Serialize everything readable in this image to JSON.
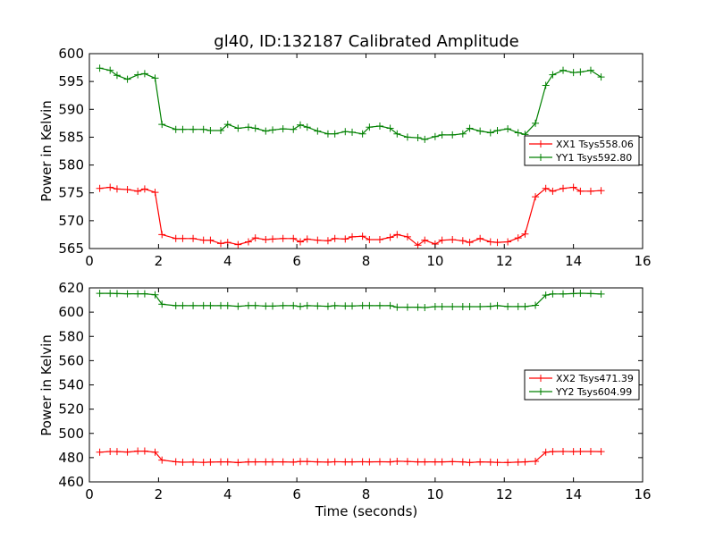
{
  "chart_data": [
    {
      "type": "line",
      "title": "gl40, ID:132187 Calibrated Amplitude",
      "xlabel": "",
      "ylabel": "Power in Kelvin",
      "xlim": [
        0,
        16
      ],
      "ylim": [
        565,
        600
      ],
      "xticks": [
        "0",
        "2",
        "4",
        "6",
        "8",
        "10",
        "12",
        "14",
        "16"
      ],
      "yticks": [
        "565",
        "570",
        "575",
        "580",
        "585",
        "590",
        "595",
        "600"
      ],
      "legend_position": "right",
      "marker": "+",
      "grid": false,
      "x": [
        0.3,
        0.6,
        0.8,
        1.1,
        1.4,
        1.6,
        1.9,
        2.1,
        2.5,
        2.7,
        3.0,
        3.3,
        3.5,
        3.8,
        4.0,
        4.3,
        4.6,
        4.8,
        5.1,
        5.3,
        5.6,
        5.9,
        6.1,
        6.3,
        6.6,
        6.9,
        7.1,
        7.4,
        7.6,
        7.9,
        8.1,
        8.4,
        8.7,
        8.9,
        9.2,
        9.5,
        9.7,
        10.0,
        10.2,
        10.5,
        10.8,
        11.0,
        11.3,
        11.6,
        11.8,
        12.1,
        12.4,
        12.6,
        12.9,
        13.2,
        13.4,
        13.7,
        14.0,
        14.2,
        14.5,
        14.8
      ],
      "series": [
        {
          "name": "XX1 Tsys558.06",
          "color": "#ff0000",
          "values": [
            575.8,
            576.0,
            575.7,
            575.6,
            575.3,
            575.7,
            575.1,
            567.5,
            566.8,
            566.8,
            566.8,
            566.5,
            566.5,
            565.9,
            566.1,
            565.7,
            566.2,
            566.9,
            566.6,
            566.7,
            566.8,
            566.8,
            566.2,
            566.7,
            566.5,
            566.4,
            566.8,
            566.7,
            567.1,
            567.2,
            566.6,
            566.6,
            567.0,
            567.5,
            567.1,
            565.6,
            566.5,
            565.8,
            566.5,
            566.6,
            566.4,
            566.1,
            566.8,
            566.2,
            566.1,
            566.2,
            566.9,
            567.6,
            574.3,
            575.8,
            575.3,
            575.8,
            576.0,
            575.3,
            575.3,
            575.4
          ]
        },
        {
          "name": "YY1 Tsys592.80",
          "color": "#008000",
          "values": [
            597.4,
            597.0,
            596.1,
            595.4,
            596.2,
            596.4,
            595.6,
            587.3,
            586.4,
            586.4,
            586.4,
            586.4,
            586.2,
            586.2,
            587.3,
            586.6,
            586.8,
            586.6,
            586.1,
            586.3,
            586.5,
            586.4,
            587.2,
            586.8,
            586.1,
            585.6,
            585.6,
            586.0,
            585.9,
            585.6,
            586.8,
            587.0,
            586.6,
            585.6,
            585.0,
            584.9,
            584.6,
            585.1,
            585.4,
            585.4,
            585.6,
            586.6,
            586.1,
            585.8,
            586.2,
            586.5,
            585.8,
            585.5,
            587.5,
            594.3,
            596.2,
            597.0,
            596.6,
            596.7,
            597.0,
            595.8
          ]
        }
      ]
    },
    {
      "type": "line",
      "title": "",
      "xlabel": "Time (seconds)",
      "ylabel": "Power in Kelvin",
      "xlim": [
        0,
        16
      ],
      "ylim": [
        460,
        620
      ],
      "xticks": [
        "0",
        "2",
        "4",
        "6",
        "8",
        "10",
        "12",
        "14",
        "16"
      ],
      "yticks": [
        "460",
        "480",
        "500",
        "520",
        "540",
        "560",
        "580",
        "600",
        "620"
      ],
      "legend_position": "right",
      "marker": "+",
      "grid": false,
      "x": [
        0.3,
        0.6,
        0.8,
        1.1,
        1.4,
        1.6,
        1.9,
        2.1,
        2.5,
        2.7,
        3.0,
        3.3,
        3.5,
        3.8,
        4.0,
        4.3,
        4.6,
        4.8,
        5.1,
        5.3,
        5.6,
        5.9,
        6.1,
        6.3,
        6.6,
        6.9,
        7.1,
        7.4,
        7.6,
        7.9,
        8.1,
        8.4,
        8.7,
        8.9,
        9.2,
        9.5,
        9.7,
        10.0,
        10.2,
        10.5,
        10.8,
        11.0,
        11.3,
        11.6,
        11.8,
        12.1,
        12.4,
        12.6,
        12.9,
        13.2,
        13.4,
        13.7,
        14.0,
        14.2,
        14.5,
        14.8
      ],
      "series": [
        {
          "name": "XX2 Tsys471.39",
          "color": "#ff0000",
          "values": [
            484.5,
            485.1,
            485.0,
            484.6,
            485.4,
            485.4,
            484.5,
            478.0,
            476.6,
            476.2,
            476.4,
            476.1,
            476.3,
            476.5,
            476.5,
            475.9,
            476.5,
            476.5,
            476.5,
            476.5,
            476.5,
            476.3,
            476.8,
            476.8,
            476.5,
            476.3,
            476.6,
            476.5,
            476.5,
            476.6,
            476.5,
            476.6,
            476.5,
            477.0,
            476.8,
            476.5,
            476.5,
            476.5,
            476.5,
            476.7,
            476.5,
            476.0,
            476.5,
            476.3,
            476.1,
            476.0,
            476.3,
            476.5,
            477.0,
            484.5,
            485.0,
            485.1,
            485.0,
            485.1,
            485.1,
            485.0
          ]
        },
        {
          "name": "YY2 Tsys604.99",
          "color": "#008000",
          "values": [
            615.5,
            615.5,
            615.3,
            615.1,
            615.1,
            615.1,
            614.3,
            606.5,
            605.3,
            605.3,
            605.3,
            605.3,
            605.3,
            605.3,
            605.3,
            604.8,
            605.4,
            605.4,
            605.0,
            605.0,
            605.3,
            605.3,
            604.7,
            605.3,
            605.1,
            604.8,
            605.3,
            605.1,
            605.1,
            605.3,
            605.3,
            605.3,
            605.3,
            604.1,
            604.1,
            604.1,
            603.8,
            604.5,
            604.5,
            604.5,
            604.5,
            604.5,
            604.5,
            604.8,
            605.3,
            604.6,
            604.6,
            604.6,
            605.6,
            614.0,
            615.0,
            615.0,
            615.3,
            615.6,
            615.3,
            614.9
          ]
        }
      ]
    }
  ]
}
